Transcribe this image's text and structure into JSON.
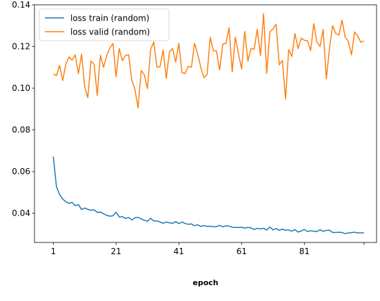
{
  "chart_data": {
    "type": "line",
    "xlabel": "epoch",
    "ylabel": "",
    "title": "",
    "xlim": [
      -5,
      104
    ],
    "ylim": [
      0.026,
      0.14
    ],
    "x_ticks": [
      1,
      21,
      41,
      61,
      81,
      100
    ],
    "x_tick_labels": [
      "1",
      "21",
      "41",
      "61",
      "81",
      ""
    ],
    "y_ticks": [
      0.04,
      0.06,
      0.08,
      0.1,
      0.12,
      0.14
    ],
    "y_tick_labels": [
      "0.04",
      "0.06",
      "0.08",
      "0.10",
      "0.12",
      "0.14"
    ],
    "grid": false,
    "legend_position": "top-left",
    "series": [
      {
        "name": "loss train (random)",
        "color": "#1f77b4",
        "x": [
          1,
          2,
          3,
          4,
          5,
          6,
          7,
          8,
          9,
          10,
          11,
          12,
          13,
          14,
          15,
          16,
          17,
          18,
          19,
          20,
          21,
          22,
          23,
          24,
          25,
          26,
          27,
          28,
          29,
          30,
          31,
          32,
          33,
          34,
          35,
          36,
          37,
          38,
          39,
          40,
          41,
          42,
          43,
          44,
          45,
          46,
          47,
          48,
          49,
          50,
          51,
          52,
          53,
          54,
          55,
          56,
          57,
          58,
          59,
          60,
          61,
          62,
          63,
          64,
          65,
          66,
          67,
          68,
          69,
          70,
          71,
          72,
          73,
          74,
          75,
          76,
          77,
          78,
          79,
          80,
          81,
          82,
          83,
          84,
          85,
          86,
          87,
          88,
          89,
          90,
          91,
          92,
          93,
          94,
          95,
          96,
          97,
          98,
          99,
          100
        ],
        "y": [
          0.0672,
          0.0527,
          0.049,
          0.0468,
          0.0455,
          0.0448,
          0.0452,
          0.0436,
          0.0442,
          0.0418,
          0.0425,
          0.0419,
          0.0414,
          0.0417,
          0.0404,
          0.0406,
          0.0398,
          0.039,
          0.0386,
          0.0388,
          0.0405,
          0.0382,
          0.0384,
          0.0375,
          0.038,
          0.0368,
          0.0378,
          0.0381,
          0.0373,
          0.0366,
          0.0362,
          0.0376,
          0.0363,
          0.0364,
          0.0358,
          0.0352,
          0.0358,
          0.0354,
          0.0352,
          0.036,
          0.035,
          0.0358,
          0.0351,
          0.0347,
          0.0349,
          0.034,
          0.0345,
          0.0337,
          0.0341,
          0.0337,
          0.0338,
          0.0335,
          0.0336,
          0.0342,
          0.0335,
          0.034,
          0.0339,
          0.0333,
          0.0332,
          0.0332,
          0.0333,
          0.0329,
          0.0332,
          0.033,
          0.0322,
          0.0328,
          0.0325,
          0.0328,
          0.032,
          0.0334,
          0.032,
          0.0327,
          0.0318,
          0.0324,
          0.0318,
          0.032,
          0.0314,
          0.0322,
          0.031,
          0.0315,
          0.0322,
          0.0313,
          0.0316,
          0.0314,
          0.0312,
          0.0321,
          0.0313,
          0.0318,
          0.0319,
          0.0308,
          0.0308,
          0.0309,
          0.0308,
          0.0302,
          0.0306,
          0.0307,
          0.0309,
          0.0306,
          0.0306,
          0.0306
        ]
      },
      {
        "name": "loss valid (random)",
        "color": "#ff7f0e",
        "x": [
          1,
          2,
          3,
          4,
          5,
          6,
          7,
          8,
          9,
          10,
          11,
          12,
          13,
          14,
          15,
          16,
          17,
          18,
          19,
          20,
          21,
          22,
          23,
          24,
          25,
          26,
          27,
          28,
          29,
          30,
          31,
          32,
          33,
          34,
          35,
          36,
          37,
          38,
          39,
          40,
          41,
          42,
          43,
          44,
          45,
          46,
          47,
          48,
          49,
          50,
          51,
          52,
          53,
          54,
          55,
          56,
          57,
          58,
          59,
          60,
          61,
          62,
          63,
          64,
          65,
          66,
          67,
          68,
          69,
          70,
          71,
          72,
          73,
          74,
          75,
          76,
          77,
          78,
          79,
          80,
          81,
          82,
          83,
          84,
          85,
          86,
          87,
          88,
          89,
          90,
          91,
          92,
          93,
          94,
          95,
          96,
          97,
          98,
          99,
          100
        ],
        "y": [
          0.1068,
          0.106,
          0.111,
          0.1037,
          0.1115,
          0.115,
          0.1135,
          0.116,
          0.107,
          0.1163,
          0.1007,
          0.0955,
          0.113,
          0.1115,
          0.0965,
          0.1158,
          0.11,
          0.1155,
          0.1192,
          0.1215,
          0.1055,
          0.119,
          0.1132,
          0.1157,
          0.116,
          0.104,
          0.0995,
          0.0905,
          0.1085,
          0.1065,
          0.0998,
          0.1185,
          0.1222,
          0.11,
          0.1103,
          0.1183,
          0.1047,
          0.1175,
          0.119,
          0.1125,
          0.1215,
          0.1075,
          0.107,
          0.1105,
          0.11,
          0.1215,
          0.1165,
          0.11,
          0.105,
          0.1065,
          0.1245,
          0.118,
          0.1178,
          0.1087,
          0.1212,
          0.1215,
          0.129,
          0.1078,
          0.1245,
          0.1165,
          0.1093,
          0.1272,
          0.113,
          0.119,
          0.1187,
          0.1283,
          0.1157,
          0.1357,
          0.107,
          0.127,
          0.1285,
          0.1307,
          0.1112,
          0.1133,
          0.0948,
          0.1185,
          0.1152,
          0.1262,
          0.119,
          0.124,
          0.123,
          0.1228,
          0.118,
          0.131,
          0.122,
          0.12,
          0.1282,
          0.1045,
          0.119,
          0.13,
          0.1262,
          0.1255,
          0.1327,
          0.1245,
          0.1225,
          0.116,
          0.127,
          0.125,
          0.122,
          0.1227
        ]
      }
    ]
  }
}
